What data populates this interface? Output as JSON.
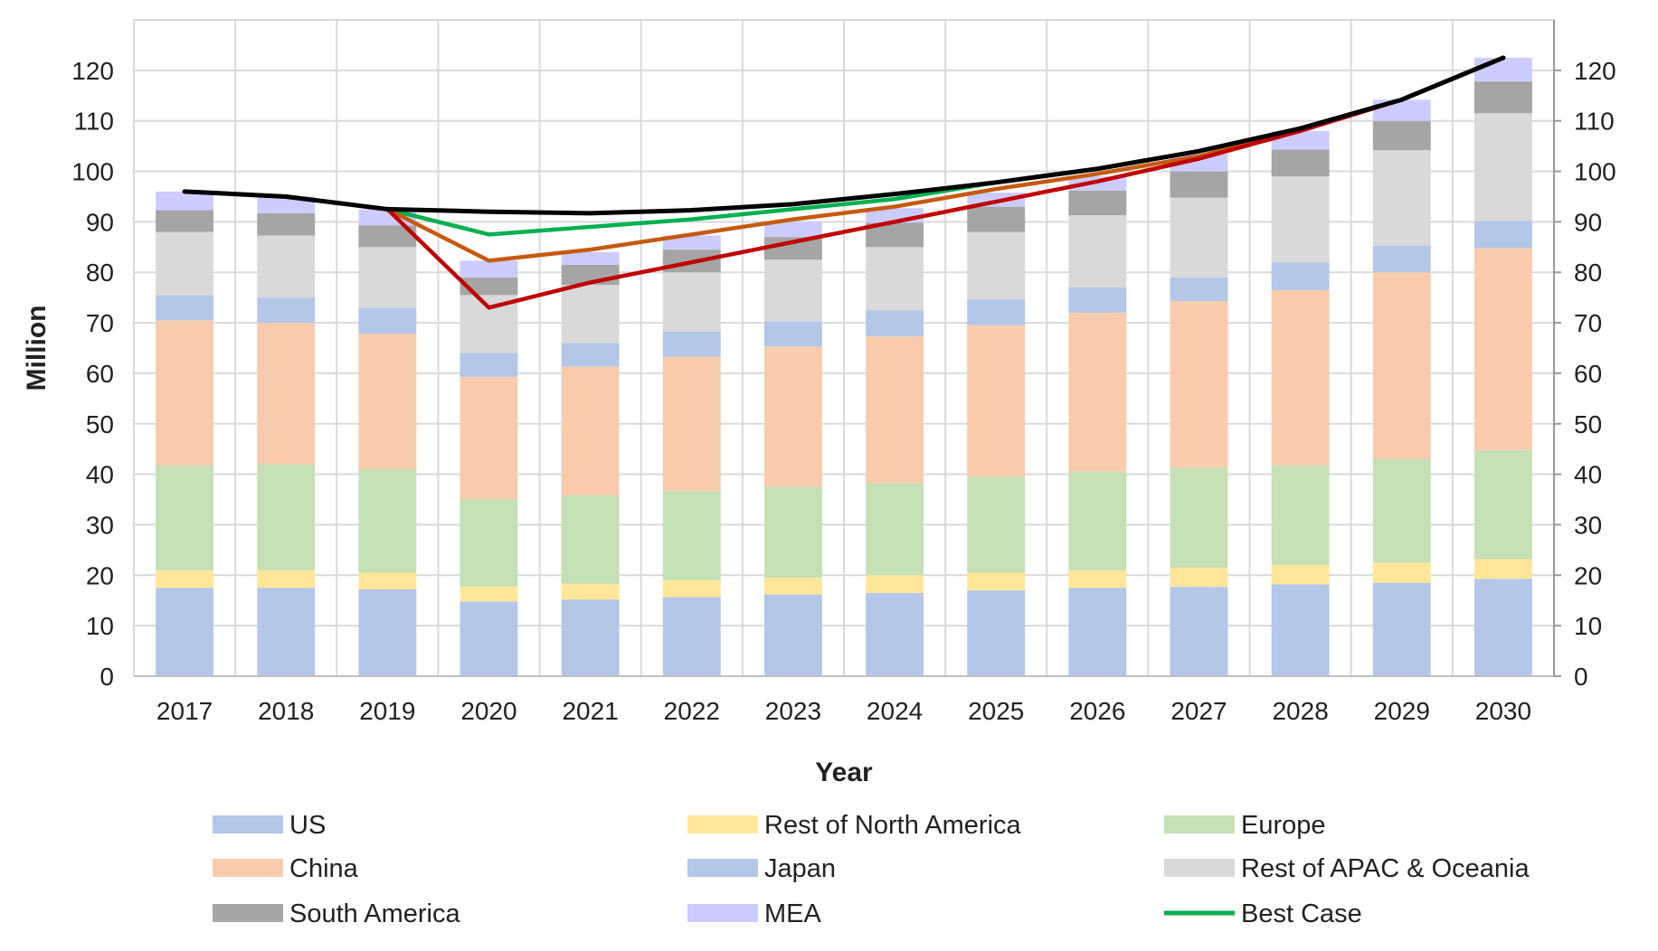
{
  "chart_data": {
    "type": "bar",
    "stacked": true,
    "title": "",
    "xlabel": "Year",
    "ylabel": "Million",
    "ylim": [
      0,
      130
    ],
    "yticks": [
      0,
      10,
      20,
      30,
      40,
      50,
      60,
      70,
      80,
      90,
      100,
      110,
      120
    ],
    "secondary_yaxis": true,
    "grid": true,
    "legend_position": "bottom",
    "categories": [
      "2017",
      "2018",
      "2019",
      "2020",
      "2021",
      "2022",
      "2023",
      "2024",
      "2025",
      "2026",
      "2027",
      "2028",
      "2029",
      "2030"
    ],
    "series": [
      {
        "name": "US",
        "kind": "bar",
        "color": "#b4c7e7",
        "values": [
          17.5,
          17.5,
          17.2,
          14.8,
          15.2,
          15.7,
          16.2,
          16.5,
          17.0,
          17.5,
          17.7,
          18.2,
          18.5,
          19.3
        ]
      },
      {
        "name": "Rest of North America",
        "kind": "bar",
        "color": "#ffe699",
        "values": [
          3.5,
          3.5,
          3.3,
          3.0,
          3.1,
          3.3,
          3.3,
          3.5,
          3.5,
          3.5,
          3.8,
          3.8,
          4.0,
          3.9
        ]
      },
      {
        "name": "Europe",
        "kind": "bar",
        "color": "#c5e0b4",
        "values": [
          20.8,
          21.0,
          20.5,
          17.2,
          17.5,
          17.6,
          18.0,
          18.2,
          19.0,
          19.5,
          19.8,
          19.8,
          20.5,
          21.6
        ]
      },
      {
        "name": "China",
        "kind": "bar",
        "color": "#f8cbad",
        "values": [
          28.7,
          28.0,
          26.8,
          24.3,
          25.5,
          26.7,
          27.8,
          29.1,
          30.0,
          31.5,
          33.0,
          34.7,
          37.0,
          40.0
        ]
      },
      {
        "name": "Japan",
        "kind": "bar",
        "color": "#b4c7e7",
        "values": [
          5.0,
          5.0,
          5.2,
          4.7,
          4.7,
          5.0,
          5.0,
          5.2,
          5.2,
          5.0,
          4.7,
          5.5,
          5.3,
          5.4
        ]
      },
      {
        "name": "Rest of APAC & Oceania",
        "kind": "bar",
        "color": "#d9d9d9",
        "values": [
          12.5,
          12.3,
          12.0,
          11.5,
          11.5,
          11.7,
          12.2,
          12.5,
          13.3,
          14.3,
          15.8,
          17.0,
          18.9,
          21.3
        ]
      },
      {
        "name": "South America",
        "kind": "bar",
        "color": "#a5a5a5",
        "values": [
          4.3,
          4.4,
          4.3,
          3.5,
          4.0,
          4.5,
          4.5,
          4.8,
          5.0,
          4.9,
          5.2,
          5.3,
          5.8,
          6.3
        ]
      },
      {
        "name": "MEA",
        "kind": "bar",
        "color": "#ccccff",
        "values": [
          3.7,
          3.3,
          3.2,
          3.3,
          2.5,
          2.8,
          3.0,
          2.9,
          2.8,
          2.8,
          3.5,
          3.7,
          4.2,
          4.7
        ]
      },
      {
        "name": "Best Case",
        "kind": "line",
        "color": "#00b050",
        "values": [
          96.0,
          95.0,
          92.5,
          87.5,
          89.0,
          90.5,
          92.5,
          94.5,
          97.8,
          100.5,
          104.0,
          108.5,
          114.2,
          122.5
        ]
      },
      {
        "name": "",
        "kind": "line",
        "color": "#c55a11",
        "values": [
          96.0,
          95.0,
          92.5,
          82.3,
          84.5,
          87.5,
          90.5,
          93.0,
          96.5,
          99.5,
          103.0,
          108.3,
          114.2,
          122.5
        ]
      },
      {
        "name": "",
        "kind": "line",
        "color": "#c00000",
        "values": [
          96.0,
          95.0,
          92.5,
          73.0,
          78.0,
          82.0,
          86.0,
          90.0,
          94.0,
          98.0,
          102.5,
          108.0,
          114.2,
          122.5
        ]
      },
      {
        "name": "",
        "kind": "line",
        "color": "#000000",
        "values": [
          96.0,
          95.0,
          92.5,
          92.0,
          91.7,
          92.3,
          93.5,
          95.5,
          97.8,
          100.5,
          104.0,
          108.5,
          114.2,
          122.5
        ]
      }
    ],
    "legend": [
      {
        "label": "US",
        "color": "#b4c7e7",
        "kind": "bar"
      },
      {
        "label": "Rest of North America",
        "color": "#ffe699",
        "kind": "bar"
      },
      {
        "label": "Europe",
        "color": "#c5e0b4",
        "kind": "bar"
      },
      {
        "label": "China",
        "color": "#f8cbad",
        "kind": "bar"
      },
      {
        "label": "Japan",
        "color": "#b4c7e7",
        "kind": "bar"
      },
      {
        "label": "Rest of APAC & Oceania",
        "color": "#d9d9d9",
        "kind": "bar"
      },
      {
        "label": "South America",
        "color": "#a5a5a5",
        "kind": "bar"
      },
      {
        "label": "MEA",
        "color": "#ccccff",
        "kind": "bar"
      },
      {
        "label": "Best Case",
        "color": "#00b050",
        "kind": "line"
      }
    ]
  }
}
